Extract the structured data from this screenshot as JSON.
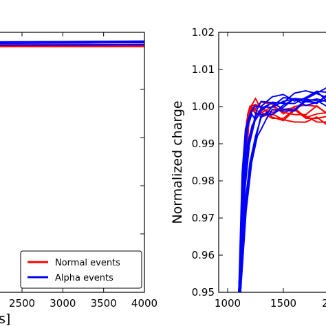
{
  "chart_data": [
    {
      "type": "line",
      "title": "",
      "xlabel_fragment": "s]",
      "ylabel": "",
      "xlim": [
        1750,
        4000
      ],
      "ylim": [
        0.95,
        1.02
      ],
      "x_ticks": [
        2500,
        3000,
        3500,
        4000
      ],
      "x_tick_labels": [
        "2500",
        "3000",
        "3500",
        "4000"
      ],
      "legend": {
        "placement": "bottom-right",
        "entries": [
          {
            "label": "Normal events",
            "color": "#ff0000"
          },
          {
            "label": "Alpha events",
            "color": "#0000ff"
          }
        ]
      },
      "series": [
        {
          "name": "Normal events",
          "color": "#ff0000",
          "x": [
            1750,
            2000,
            2500,
            3000,
            3500,
            4000
          ],
          "y": [
            1.0,
            1.0,
            1.0,
            1.0,
            1.0,
            1.0
          ]
        },
        {
          "name": "Alpha events",
          "color": "#0000ff",
          "x": [
            1750,
            2000,
            2500,
            3000,
            3500,
            4000
          ],
          "y": [
            1.0005,
            1.0008,
            1.001,
            1.0012,
            1.0015,
            1.0018
          ]
        }
      ]
    },
    {
      "type": "line",
      "title": "",
      "xlabel": "",
      "ylabel": "Normalized charge",
      "xlim": [
        900,
        2200
      ],
      "ylim": [
        0.95,
        1.02
      ],
      "x_ticks": [
        1000,
        1500
      ],
      "x_tick_labels": [
        "1000",
        "1500"
      ],
      "x_tick_partial": "2",
      "y_ticks": [
        0.95,
        0.96,
        0.97,
        0.98,
        0.99,
        1.0,
        1.01,
        1.02
      ],
      "y_tick_labels": [
        "0.95",
        "0.96",
        "0.97",
        "0.98",
        "0.99",
        "1.00",
        "1.01",
        "1.02"
      ],
      "grid": false,
      "series": [
        {
          "name": "Normal events",
          "color": "#ff0000",
          "x": [
            1100,
            1150,
            1180,
            1200,
            1250,
            1300,
            1400,
            1500,
            1600,
            1700,
            1800,
            1900,
            2000,
            2100,
            2200
          ],
          "y": [
            0.95,
            0.985,
            0.998,
            1.0,
            1.0,
            0.999,
            0.998,
            0.997,
            0.998,
            0.997,
            0.997,
            0.996,
            0.997,
            0.996,
            0.996
          ]
        },
        {
          "name": "Normal events",
          "color": "#ff0000",
          "x": [
            1100,
            1140,
            1170,
            1200,
            1250,
            1300,
            1400,
            1500,
            1600,
            1700,
            1800,
            1900,
            2000,
            2100,
            2200
          ],
          "y": [
            0.95,
            0.98,
            0.996,
            1.0,
            0.999,
            0.999,
            0.999,
            0.998,
            0.999,
            0.998,
            0.999,
            0.998,
            0.999,
            0.999,
            0.998
          ]
        },
        {
          "name": "Alpha events",
          "color": "#0000ff",
          "x": [
            1100,
            1150,
            1200,
            1250,
            1300,
            1350,
            1400,
            1500,
            1600,
            1700,
            1800,
            1900,
            2000,
            2100,
            2200
          ],
          "y": [
            0.95,
            0.972,
            0.985,
            0.992,
            0.996,
            0.998,
            0.999,
            1.0,
            1.001,
            1.002,
            1.002,
            1.003,
            1.003,
            1.004,
            1.004
          ]
        },
        {
          "name": "Alpha events",
          "color": "#0000ff",
          "x": [
            1100,
            1140,
            1180,
            1220,
            1260,
            1300,
            1400,
            1500,
            1600,
            1700,
            1800,
            1900,
            2000,
            2100,
            2200
          ],
          "y": [
            0.95,
            0.978,
            0.99,
            0.995,
            0.998,
            0.999,
            1.0,
            1.001,
            1.002,
            1.002,
            1.003,
            1.002,
            1.003,
            1.003,
            1.004
          ]
        },
        {
          "name": "Alpha events",
          "color": "#0000ff",
          "x": [
            1100,
            1130,
            1160,
            1200,
            1240,
            1300,
            1400,
            1500,
            1600,
            1700,
            1800,
            1900,
            2000,
            2100,
            2200
          ],
          "y": [
            0.95,
            0.982,
            0.994,
            0.998,
            0.999,
            1.0,
            1.001,
            1.001,
            1.001,
            1.002,
            1.002,
            1.002,
            1.002,
            1.003,
            1.003
          ]
        }
      ]
    }
  ]
}
